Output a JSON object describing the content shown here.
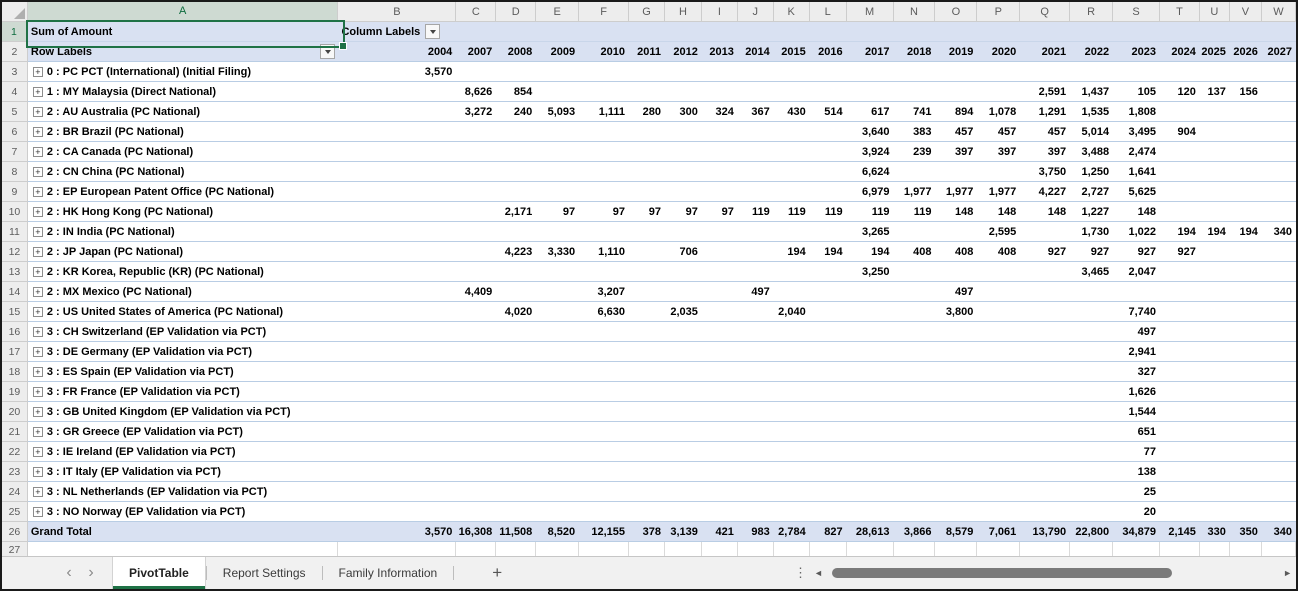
{
  "pivot": {
    "selected_cell_ref": "A1",
    "measure_cell": "Sum of Amount",
    "column_labels_cell": "Column Labels",
    "row_labels_cell": "Row Labels",
    "column_letters": [
      "A",
      "B",
      "C",
      "D",
      "E",
      "F",
      "G",
      "H",
      "I",
      "J",
      "K",
      "L",
      "M",
      "N",
      "O",
      "P",
      "Q",
      "R",
      "S",
      "T",
      "U",
      "V",
      "W"
    ],
    "years": [
      "2004",
      "2007",
      "2008",
      "2009",
      "2010",
      "2011",
      "2012",
      "2013",
      "2014",
      "2015",
      "2016",
      "2017",
      "2018",
      "2019",
      "2020",
      "2021",
      "2022",
      "2023",
      "2024",
      "2025",
      "2026",
      "2027"
    ],
    "rows": [
      {
        "num": "3",
        "label": "0 : PC PCT (International) (Initial Filing)",
        "values": [
          "3,570",
          "",
          "",
          "",
          "",
          "",
          "",
          "",
          "",
          "",
          "",
          "",
          "",
          "",
          "",
          "",
          "",
          "",
          "",
          "",
          "",
          ""
        ]
      },
      {
        "num": "4",
        "label": "1 : MY Malaysia (Direct National)",
        "values": [
          "",
          "8,626",
          "854",
          "",
          "",
          "",
          "",
          "",
          "",
          "",
          "",
          "",
          "",
          "",
          "",
          "2,591",
          "1,437",
          "105",
          "120",
          "137",
          "156",
          ""
        ]
      },
      {
        "num": "5",
        "label": "2 : AU Australia (PC National)",
        "values": [
          "",
          "3,272",
          "240",
          "5,093",
          "1,111",
          "280",
          "300",
          "324",
          "367",
          "430",
          "514",
          "617",
          "741",
          "894",
          "1,078",
          "1,291",
          "1,535",
          "1,808",
          "",
          "",
          "",
          ""
        ]
      },
      {
        "num": "6",
        "label": "2 : BR Brazil (PC National)",
        "values": [
          "",
          "",
          "",
          "",
          "",
          "",
          "",
          "",
          "",
          "",
          "",
          "3,640",
          "383",
          "457",
          "457",
          "457",
          "5,014",
          "3,495",
          "904",
          "",
          "",
          ""
        ]
      },
      {
        "num": "7",
        "label": "2 : CA Canada (PC National)",
        "values": [
          "",
          "",
          "",
          "",
          "",
          "",
          "",
          "",
          "",
          "",
          "",
          "3,924",
          "239",
          "397",
          "397",
          "397",
          "3,488",
          "2,474",
          "",
          "",
          "",
          ""
        ]
      },
      {
        "num": "8",
        "label": "2 : CN China (PC National)",
        "values": [
          "",
          "",
          "",
          "",
          "",
          "",
          "",
          "",
          "",
          "",
          "",
          "6,624",
          "",
          "",
          "",
          "3,750",
          "1,250",
          "1,641",
          "",
          "",
          "",
          ""
        ]
      },
      {
        "num": "9",
        "label": "2 : EP European Patent Office (PC National)",
        "values": [
          "",
          "",
          "",
          "",
          "",
          "",
          "",
          "",
          "",
          "",
          "",
          "6,979",
          "1,977",
          "1,977",
          "1,977",
          "4,227",
          "2,727",
          "5,625",
          "",
          "",
          "",
          ""
        ]
      },
      {
        "num": "10",
        "label": "2 : HK Hong Kong (PC National)",
        "values": [
          "",
          "",
          "2,171",
          "97",
          "97",
          "97",
          "97",
          "97",
          "119",
          "119",
          "119",
          "119",
          "119",
          "148",
          "148",
          "148",
          "1,227",
          "148",
          "",
          "",
          "",
          ""
        ]
      },
      {
        "num": "11",
        "label": "2 : IN India (PC National)",
        "values": [
          "",
          "",
          "",
          "",
          "",
          "",
          "",
          "",
          "",
          "",
          "",
          "3,265",
          "",
          "",
          "2,595",
          "",
          "1,730",
          "1,022",
          "194",
          "194",
          "194",
          "340"
        ]
      },
      {
        "num": "12",
        "label": "2 : JP Japan (PC National)",
        "values": [
          "",
          "",
          "4,223",
          "3,330",
          "1,110",
          "",
          "706",
          "",
          "",
          "194",
          "194",
          "194",
          "408",
          "408",
          "408",
          "927",
          "927",
          "927",
          "927",
          "",
          "",
          ""
        ]
      },
      {
        "num": "13",
        "label": "2 : KR Korea, Republic (KR) (PC National)",
        "values": [
          "",
          "",
          "",
          "",
          "",
          "",
          "",
          "",
          "",
          "",
          "",
          "3,250",
          "",
          "",
          "",
          "",
          "3,465",
          "2,047",
          "",
          "",
          "",
          ""
        ]
      },
      {
        "num": "14",
        "label": "2 : MX Mexico (PC National)",
        "values": [
          "",
          "4,409",
          "",
          "",
          "3,207",
          "",
          "",
          "",
          "497",
          "",
          "",
          "",
          "",
          "497",
          "",
          "",
          "",
          "",
          "",
          "",
          "",
          ""
        ]
      },
      {
        "num": "15",
        "label": "2 : US United States of America (PC National)",
        "values": [
          "",
          "",
          "4,020",
          "",
          "6,630",
          "",
          "2,035",
          "",
          "",
          "2,040",
          "",
          "",
          "",
          "3,800",
          "",
          "",
          "",
          "7,740",
          "",
          "",
          "",
          ""
        ]
      },
      {
        "num": "16",
        "label": "3 : CH Switzerland (EP Validation via PCT)",
        "values": [
          "",
          "",
          "",
          "",
          "",
          "",
          "",
          "",
          "",
          "",
          "",
          "",
          "",
          "",
          "",
          "",
          "",
          "497",
          "",
          "",
          "",
          ""
        ]
      },
      {
        "num": "17",
        "label": "3 : DE Germany (EP Validation via PCT)",
        "values": [
          "",
          "",
          "",
          "",
          "",
          "",
          "",
          "",
          "",
          "",
          "",
          "",
          "",
          "",
          "",
          "",
          "",
          "2,941",
          "",
          "",
          "",
          ""
        ]
      },
      {
        "num": "18",
        "label": "3 : ES Spain (EP Validation via PCT)",
        "values": [
          "",
          "",
          "",
          "",
          "",
          "",
          "",
          "",
          "",
          "",
          "",
          "",
          "",
          "",
          "",
          "",
          "",
          "327",
          "",
          "",
          "",
          ""
        ]
      },
      {
        "num": "19",
        "label": "3 : FR France (EP Validation via PCT)",
        "values": [
          "",
          "",
          "",
          "",
          "",
          "",
          "",
          "",
          "",
          "",
          "",
          "",
          "",
          "",
          "",
          "",
          "",
          "1,626",
          "",
          "",
          "",
          ""
        ]
      },
      {
        "num": "20",
        "label": "3 : GB United Kingdom (EP Validation via PCT)",
        "values": [
          "",
          "",
          "",
          "",
          "",
          "",
          "",
          "",
          "",
          "",
          "",
          "",
          "",
          "",
          "",
          "",
          "",
          "1,544",
          "",
          "",
          "",
          ""
        ]
      },
      {
        "num": "21",
        "label": "3 : GR Greece (EP Validation via PCT)",
        "values": [
          "",
          "",
          "",
          "",
          "",
          "",
          "",
          "",
          "",
          "",
          "",
          "",
          "",
          "",
          "",
          "",
          "",
          "651",
          "",
          "",
          "",
          ""
        ]
      },
      {
        "num": "22",
        "label": "3 : IE Ireland (EP Validation via PCT)",
        "values": [
          "",
          "",
          "",
          "",
          "",
          "",
          "",
          "",
          "",
          "",
          "",
          "",
          "",
          "",
          "",
          "",
          "",
          "77",
          "",
          "",
          "",
          ""
        ]
      },
      {
        "num": "23",
        "label": "3 : IT Italy (EP Validation via PCT)",
        "values": [
          "",
          "",
          "",
          "",
          "",
          "",
          "",
          "",
          "",
          "",
          "",
          "",
          "",
          "",
          "",
          "",
          "",
          "138",
          "",
          "",
          "",
          ""
        ]
      },
      {
        "num": "24",
        "label": "3 : NL Netherlands (EP Validation via PCT)",
        "values": [
          "",
          "",
          "",
          "",
          "",
          "",
          "",
          "",
          "",
          "",
          "",
          "",
          "",
          "",
          "",
          "",
          "",
          "25",
          "",
          "",
          "",
          ""
        ]
      },
      {
        "num": "25",
        "label": "3 : NO Norway (EP Validation via PCT)",
        "values": [
          "",
          "",
          "",
          "",
          "",
          "",
          "",
          "",
          "",
          "",
          "",
          "",
          "",
          "",
          "",
          "",
          "",
          "20",
          "",
          "",
          "",
          ""
        ]
      }
    ],
    "grand_total": {
      "num": "26",
      "label": "Grand Total",
      "values": [
        "3,570",
        "16,308",
        "11,508",
        "8,520",
        "12,155",
        "378",
        "3,139",
        "421",
        "983",
        "2,784",
        "827",
        "28,613",
        "3,866",
        "8,579",
        "7,061",
        "13,790",
        "22,800",
        "34,879",
        "2,145",
        "330",
        "350",
        "340"
      ]
    },
    "trailing_row_num": "27"
  },
  "icons": {
    "expand_glyph": "+",
    "divider_dots": "⋮"
  },
  "sheet_tabs": {
    "nav_prev": "‹",
    "nav_next": "›",
    "tabs": [
      {
        "label": "PivotTable",
        "active": true
      },
      {
        "label": "Report Settings",
        "active": false
      },
      {
        "label": "Family Information",
        "active": false
      }
    ],
    "add_tab": "+"
  },
  "scrollbar": {
    "left_arrow": "◄",
    "right_arrow": "►"
  },
  "colors": {
    "selection_green": "#1F7246",
    "pivot_header_fill": "#D9E1F2",
    "pivot_border_blue": "#B9CDE4",
    "active_tab_underline": "#1F7246"
  }
}
